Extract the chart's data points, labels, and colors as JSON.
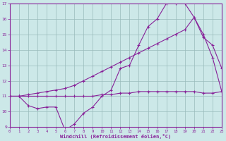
{
  "xlabel": "Windchill (Refroidissement éolien,°C)",
  "xlim": [
    0,
    23
  ],
  "ylim": [
    9,
    17
  ],
  "yticks": [
    9,
    10,
    11,
    12,
    13,
    14,
    15,
    16,
    17
  ],
  "xticks": [
    0,
    1,
    2,
    3,
    4,
    5,
    6,
    7,
    8,
    9,
    10,
    11,
    12,
    13,
    14,
    15,
    16,
    17,
    18,
    19,
    20,
    21,
    22,
    23
  ],
  "bg_color": "#cce8e8",
  "line_color": "#882299",
  "grid_color": "#99bbbb",
  "line1_x": [
    0,
    1,
    2,
    3,
    4,
    5,
    6,
    7,
    8,
    9,
    10,
    11,
    12,
    13,
    14,
    15,
    16,
    17,
    18,
    19,
    20,
    21,
    22,
    23
  ],
  "line1_y": [
    11.0,
    11.0,
    10.4,
    10.2,
    10.3,
    10.3,
    8.8,
    9.2,
    9.9,
    10.3,
    11.0,
    11.4,
    12.8,
    13.0,
    14.3,
    15.5,
    16.0,
    17.0,
    17.0,
    17.0,
    16.1,
    14.8,
    14.3,
    12.8
  ],
  "line2_x": [
    0,
    1,
    2,
    3,
    4,
    5,
    6,
    7,
    8,
    9,
    10,
    11,
    12,
    13,
    14,
    15,
    16,
    17,
    18,
    19,
    20,
    21,
    22,
    23
  ],
  "line2_y": [
    11.0,
    11.0,
    11.1,
    11.2,
    11.3,
    11.4,
    11.5,
    11.7,
    12.0,
    12.3,
    12.6,
    12.9,
    13.2,
    13.5,
    13.8,
    14.1,
    14.4,
    14.7,
    15.0,
    15.3,
    16.1,
    15.0,
    13.5,
    11.3
  ],
  "line3_x": [
    0,
    1,
    2,
    3,
    4,
    5,
    6,
    7,
    8,
    9,
    10,
    11,
    12,
    13,
    14,
    15,
    16,
    17,
    18,
    19,
    20,
    21,
    22,
    23
  ],
  "line3_y": [
    11.0,
    11.0,
    11.0,
    11.0,
    11.0,
    11.0,
    11.0,
    11.0,
    11.0,
    11.0,
    11.1,
    11.1,
    11.2,
    11.2,
    11.3,
    11.3,
    11.3,
    11.3,
    11.3,
    11.3,
    11.3,
    11.2,
    11.2,
    11.3
  ]
}
